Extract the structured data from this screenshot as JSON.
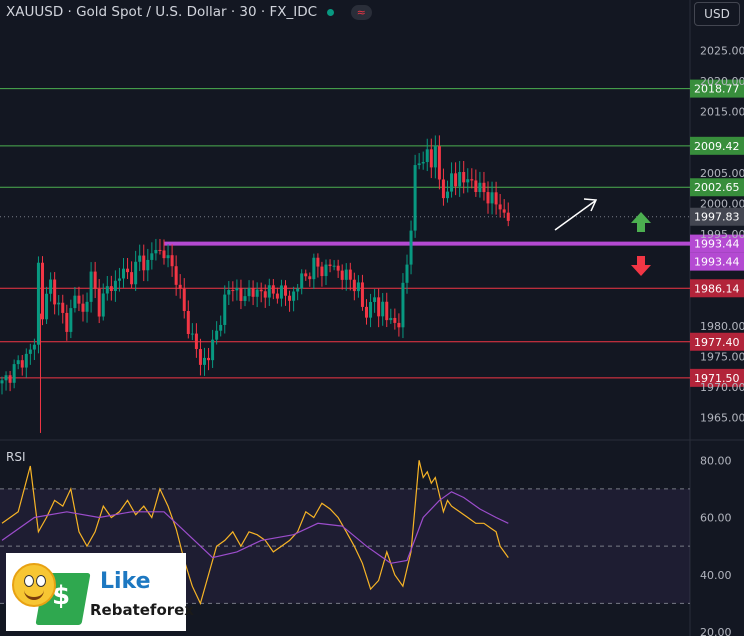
{
  "header": {
    "title": "XAUUSD · Gold Spot / U.S. Dollar · 30 · FX_IDC",
    "status_pill": "≈"
  },
  "currency_select": {
    "value": "USD"
  },
  "colors": {
    "background": "#131722",
    "up": "#089981",
    "down": "#f23645",
    "resistance": "#4caf50",
    "support": "#f23645",
    "pivot": "#b44ad2",
    "rsi": "#f7b426",
    "rsi_ma": "#9c4dcc"
  },
  "chart_data": [
    {
      "type": "candlestick",
      "title": "XAUUSD · Gold Spot / U.S. Dollar · 30 · FX_IDC",
      "ylim": [
        1962,
        2029
      ],
      "y_ticks": [
        "2025.00",
        "2020.00",
        "2015.00",
        "2005.00",
        "2000.00",
        "1995.00",
        "1980.00",
        "1975.00",
        "1970.00",
        "1965.00"
      ],
      "anchors": [
        [
          0,
          1970.5
        ],
        [
          3,
          1973
        ],
        [
          6,
          1975
        ],
        [
          8,
          1977
        ],
        [
          9,
          1990
        ],
        [
          10,
          1982
        ],
        [
          12,
          1987
        ],
        [
          14,
          1983
        ],
        [
          16,
          1980
        ],
        [
          18,
          1985
        ],
        [
          20,
          1982
        ],
        [
          22,
          1988
        ],
        [
          24,
          1983
        ],
        [
          26,
          1986
        ],
        [
          28,
          1987
        ],
        [
          30,
          1989
        ],
        [
          32,
          1988
        ],
        [
          34,
          1991
        ],
        [
          36,
          1990
        ],
        [
          38,
          1993
        ],
        [
          39,
          1992
        ],
        [
          41,
          1991
        ],
        [
          43,
          1988
        ],
        [
          45,
          1982
        ],
        [
          47,
          1978
        ],
        [
          49,
          1974
        ],
        [
          51,
          1975
        ],
        [
          53,
          1979
        ],
        [
          55,
          1984
        ],
        [
          57,
          1987
        ],
        [
          59,
          1984
        ],
        [
          61,
          1986
        ],
        [
          63,
          1985
        ],
        [
          65,
          1986
        ],
        [
          67,
          1985
        ],
        [
          69,
          1986
        ],
        [
          71,
          1984
        ],
        [
          73,
          1987
        ],
        [
          75,
          1988
        ],
        [
          77,
          1990
        ],
        [
          79,
          1989
        ],
        [
          81,
          1990
        ],
        [
          83,
          1989
        ],
        [
          85,
          1988
        ],
        [
          87,
          1987
        ],
        [
          88,
          1986
        ],
        [
          89,
          1983
        ],
        [
          90,
          1982
        ],
        [
          92,
          1985
        ],
        [
          93,
          1981
        ],
        [
          94,
          1984
        ],
        [
          96,
          1980
        ],
        [
          98,
          1981
        ],
        [
          99,
          1986
        ],
        [
          100,
          1990
        ],
        [
          101,
          1996
        ],
        [
          102,
          2006
        ],
        [
          103,
          2007
        ],
        [
          104,
          2006
        ],
        [
          105,
          2009
        ],
        [
          106,
          2007
        ],
        [
          107,
          2008
        ],
        [
          108,
          2004
        ],
        [
          109,
          2002
        ],
        [
          110,
          2001
        ],
        [
          111,
          2005
        ],
        [
          112,
          2003
        ],
        [
          113,
          2005
        ],
        [
          114,
          2004
        ],
        [
          115,
          2003
        ],
        [
          116,
          2004
        ],
        [
          117,
          2003
        ],
        [
          118,
          2002
        ],
        [
          119,
          2002
        ],
        [
          120,
          2001
        ],
        [
          121,
          2001
        ],
        [
          122,
          2000
        ],
        [
          123,
          1999
        ],
        [
          124,
          1998.5
        ],
        [
          125,
          1997.8
        ]
      ],
      "levels": [
        {
          "value": 2018.77,
          "label": "2018.77",
          "kind": "resistance"
        },
        {
          "value": 2009.42,
          "label": "2009.42",
          "kind": "resistance"
        },
        {
          "value": 2002.65,
          "label": "2002.65",
          "kind": "resistance"
        },
        {
          "value": 1993.44,
          "label": "1993.44",
          "kind": "pivot"
        },
        {
          "value": 1986.14,
          "label": "1986.14",
          "kind": "support"
        },
        {
          "value": 1977.4,
          "label": "1977.40",
          "kind": "support"
        },
        {
          "value": 1971.5,
          "label": "1971.50",
          "kind": "support"
        }
      ],
      "last_price": {
        "value": 1997.83,
        "label": "1997.83"
      },
      "pivot_tag": "1993.44"
    },
    {
      "type": "line",
      "title": "RSI",
      "ylim": [
        20,
        85
      ],
      "y_ticks": [
        "80.00",
        "60.00",
        "40.00",
        "20.00"
      ],
      "bands": [
        70,
        50,
        30
      ],
      "series": [
        {
          "values": [
            [
              0,
              58
            ],
            [
              4,
              62
            ],
            [
              7,
              78
            ],
            [
              9,
              55
            ],
            [
              11,
              60
            ],
            [
              13,
              66
            ],
            [
              15,
              64
            ],
            [
              17,
              70
            ],
            [
              19,
              55
            ],
            [
              21,
              50
            ],
            [
              23,
              55
            ],
            [
              25,
              64
            ],
            [
              27,
              60
            ],
            [
              29,
              62
            ],
            [
              31,
              66
            ],
            [
              33,
              61
            ],
            [
              35,
              64
            ],
            [
              37,
              60
            ],
            [
              39,
              70
            ],
            [
              41,
              64
            ],
            [
              43,
              56
            ],
            [
              45,
              45
            ],
            [
              47,
              36
            ],
            [
              49,
              30
            ],
            [
              51,
              40
            ],
            [
              53,
              50
            ],
            [
              55,
              52
            ],
            [
              57,
              55
            ],
            [
              59,
              50
            ],
            [
              61,
              55
            ],
            [
              63,
              54
            ],
            [
              65,
              52
            ],
            [
              67,
              48
            ],
            [
              69,
              50
            ],
            [
              71,
              52
            ],
            [
              73,
              55
            ],
            [
              75,
              62
            ],
            [
              77,
              60
            ],
            [
              79,
              65
            ],
            [
              81,
              63
            ],
            [
              83,
              60
            ],
            [
              85,
              55
            ],
            [
              87,
              50
            ],
            [
              89,
              44
            ],
            [
              91,
              35
            ],
            [
              93,
              38
            ],
            [
              95,
              48
            ],
            [
              97,
              40
            ],
            [
              99,
              36
            ],
            [
              101,
              48
            ],
            [
              102,
              64
            ],
            [
              103,
              80
            ],
            [
              104,
              74
            ],
            [
              105,
              76
            ],
            [
              106,
              72
            ],
            [
              107,
              74
            ],
            [
              108,
              68
            ],
            [
              109,
              62
            ],
            [
              110,
              66
            ],
            [
              111,
              64
            ],
            [
              113,
              62
            ],
            [
              115,
              60
            ],
            [
              117,
              58
            ],
            [
              119,
              58
            ],
            [
              121,
              56
            ],
            [
              122,
              55
            ],
            [
              123,
              50
            ],
            [
              124,
              48
            ],
            [
              125,
              46
            ]
          ]
        },
        {
          "values": [
            [
              0,
              52
            ],
            [
              8,
              60
            ],
            [
              16,
              62
            ],
            [
              24,
              60
            ],
            [
              32,
              62
            ],
            [
              40,
              62
            ],
            [
              46,
              54
            ],
            [
              52,
              46
            ],
            [
              58,
              48
            ],
            [
              64,
              52
            ],
            [
              72,
              54
            ],
            [
              78,
              58
            ],
            [
              84,
              57
            ],
            [
              90,
              50
            ],
            [
              96,
              44
            ],
            [
              100,
              45
            ],
            [
              104,
              60
            ],
            [
              108,
              66
            ],
            [
              111,
              69
            ],
            [
              114,
              67
            ],
            [
              118,
              63
            ],
            [
              122,
              60
            ],
            [
              125,
              58
            ]
          ]
        }
      ]
    }
  ],
  "logo": {
    "like": "Like",
    "brand": "Rebateforex"
  }
}
